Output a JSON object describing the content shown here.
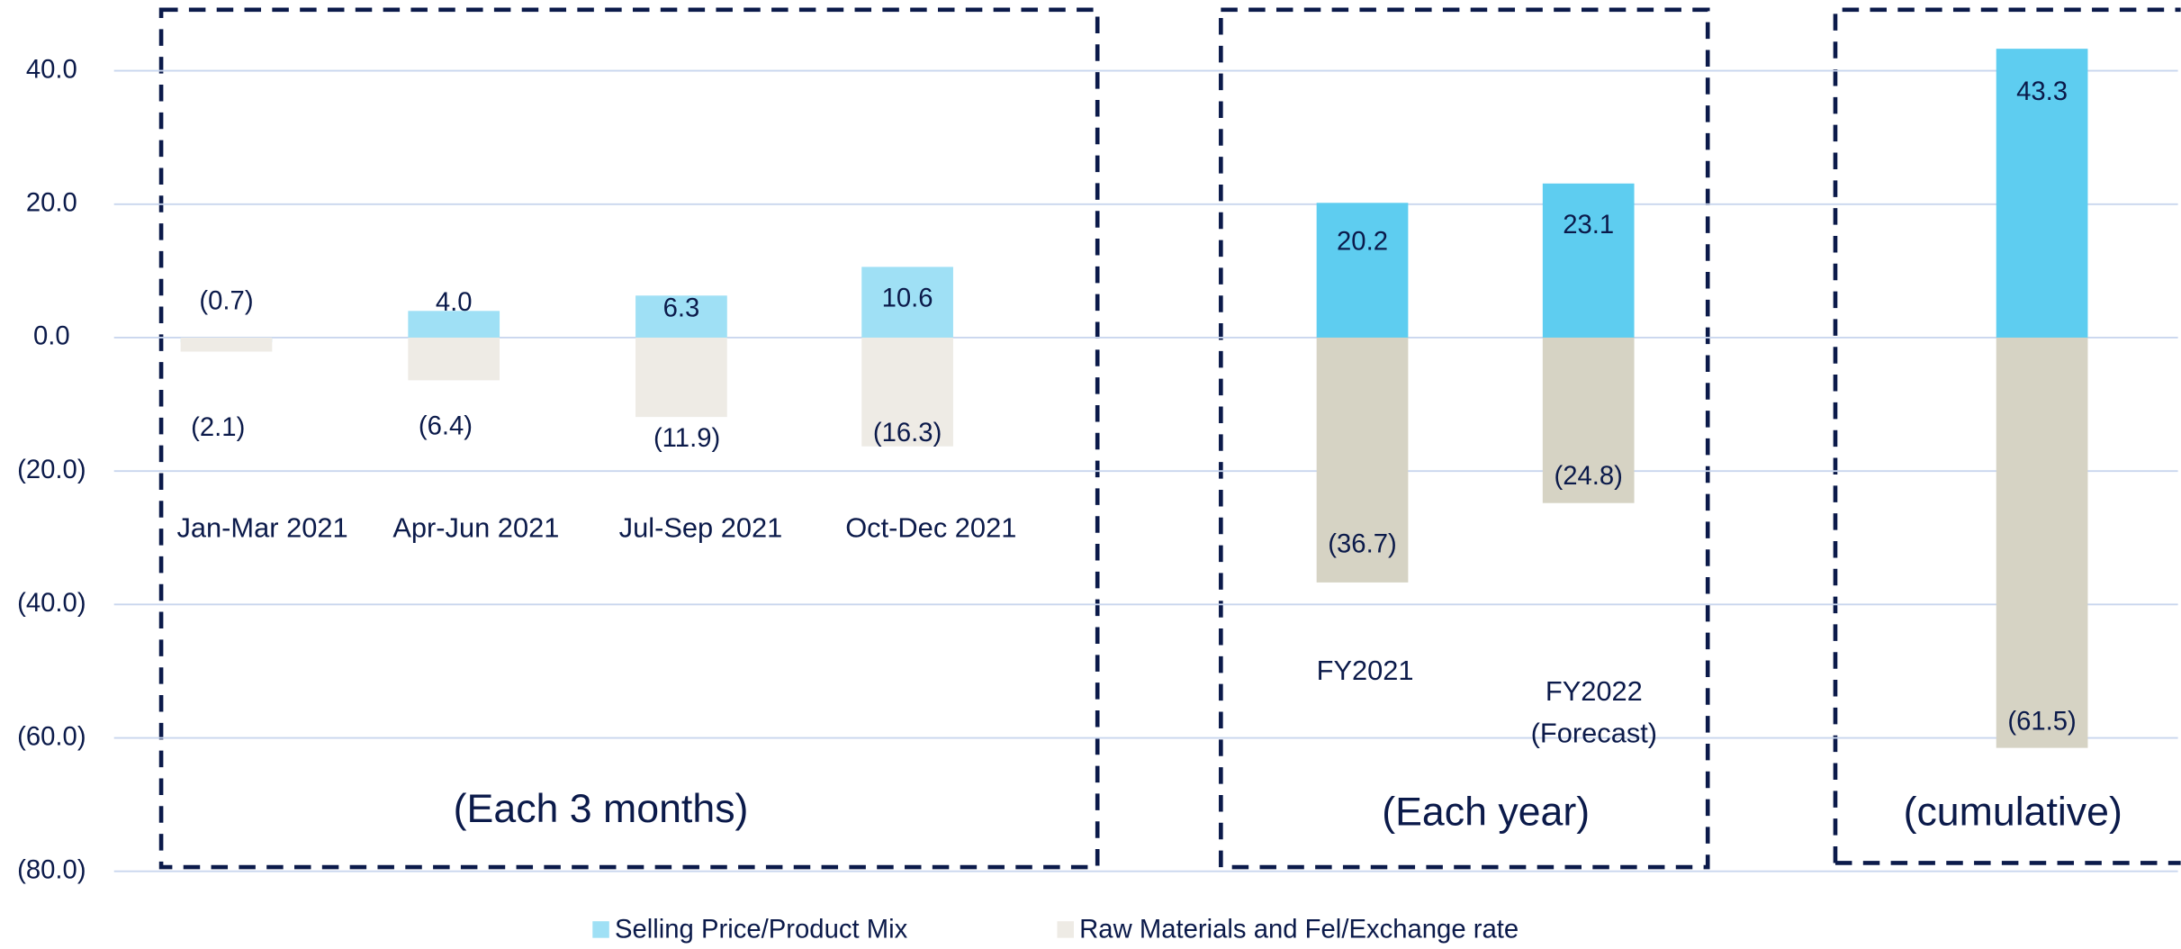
{
  "chart_data": {
    "type": "bar",
    "categories": [
      "Jan-Mar 2021",
      "Apr-Jun 2021",
      "Jul-Sep 2021",
      "Oct-Dec 2021",
      "FY2021",
      "FY2022\n(Forecast)",
      null
    ],
    "series": [
      {
        "name": "Selling Price/Product Mix",
        "color": "#9fe0f5",
        "colors": [
          "#9fe0f5",
          "#9fe0f5",
          "#9fe0f5",
          "#9fe0f5",
          "#5ecdf0",
          "#5ecdf0",
          "#5ecdf0"
        ],
        "values": [
          -0.7,
          4.0,
          6.3,
          10.6,
          20.2,
          23.1,
          43.3
        ],
        "value_labels": [
          "(0.7)",
          "4.0",
          "6.3",
          "10.6",
          "20.2",
          "23.1",
          "43.3"
        ]
      },
      {
        "name": "Raw Materials and Fel/Exchange rate",
        "color": "#eeebe5",
        "colors": [
          "#eeebe5",
          "#eeebe5",
          "#eeebe5",
          "#eeebe5",
          "#d6d3c4",
          "#d6d3c4",
          "#d6d3c4"
        ],
        "values": [
          -2.1,
          -6.4,
          -11.9,
          -16.3,
          -36.7,
          -24.8,
          -61.5
        ],
        "value_labels": [
          "(2.1)",
          "(6.4)",
          "(11.9)",
          "(16.3)",
          "(36.7)",
          "(24.8)",
          "(61.5)"
        ]
      }
    ],
    "annotations": [
      "(Each 3 months)",
      "(Each year)",
      "(cumulative)"
    ],
    "ylim": [
      -80,
      40
    ],
    "yticks": [
      {
        "value": 40,
        "label": "40.0"
      },
      {
        "value": 20,
        "label": "20.0"
      },
      {
        "value": 0,
        "label": "0.0"
      },
      {
        "value": -20,
        "label": "(20.0)"
      },
      {
        "value": -40,
        "label": "(40.0)"
      },
      {
        "value": -60,
        "label": "(60.0)"
      },
      {
        "value": -80,
        "label": "(80.0)"
      }
    ],
    "grid": true,
    "legend": "bottom"
  }
}
